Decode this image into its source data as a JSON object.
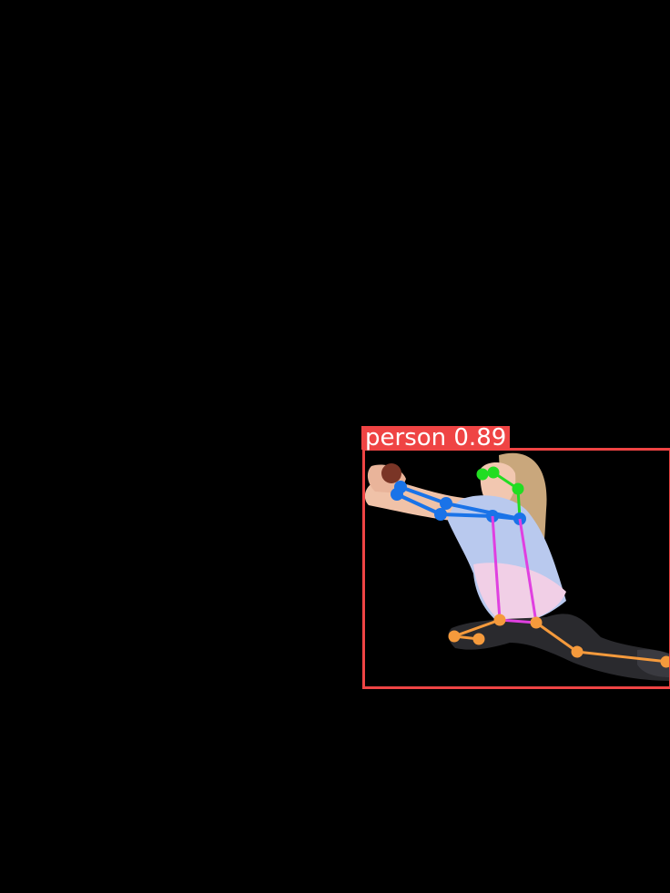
{
  "detection": {
    "label": "person",
    "confidence": "0.89",
    "box_color": "#ef4444",
    "text_color": "#ffffff"
  },
  "skeleton_colors": {
    "head": "#22dd22",
    "arms": "#1a73e8",
    "torso": "#e040e0",
    "legs": "#f59a3c"
  }
}
